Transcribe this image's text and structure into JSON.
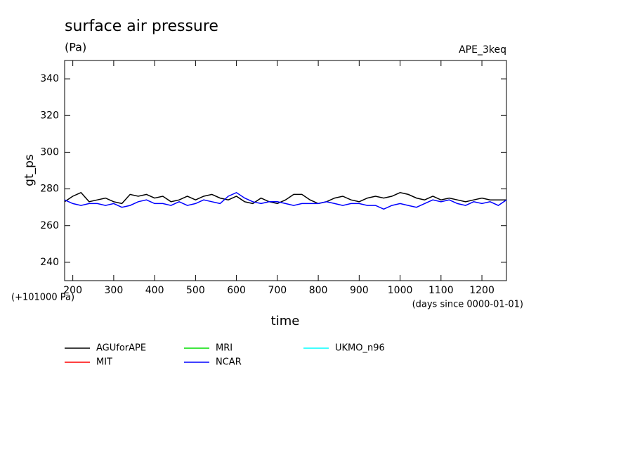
{
  "chart_data": {
    "type": "line",
    "title": "surface air pressure",
    "units": "(Pa)",
    "experiment": "APE_3keq",
    "ylabel": "gt_ps",
    "xlabel": "time",
    "y_offset_note": "(+101000 Pa)",
    "x_units_note": "(days since 0000-01-01)",
    "xlim": [
      180,
      1260
    ],
    "ylim": [
      230,
      350
    ],
    "xticks": [
      200,
      300,
      400,
      500,
      600,
      700,
      800,
      900,
      1000,
      1100,
      1200
    ],
    "yticks": [
      240,
      260,
      280,
      300,
      320,
      340
    ],
    "x": [
      180,
      200,
      220,
      240,
      260,
      280,
      300,
      320,
      340,
      360,
      380,
      400,
      420,
      440,
      460,
      480,
      500,
      520,
      540,
      560,
      580,
      600,
      620,
      640,
      660,
      680,
      700,
      720,
      740,
      760,
      780,
      800,
      820,
      840,
      860,
      880,
      900,
      920,
      940,
      960,
      980,
      1000,
      1020,
      1040,
      1060,
      1080,
      1100,
      1120,
      1140,
      1160,
      1180,
      1200,
      1220,
      1240,
      1260
    ],
    "series": [
      {
        "name": "AGUforAPE",
        "color": "#000000",
        "values": [
          273,
          276,
          278,
          273,
          274,
          275,
          273,
          272,
          277,
          276,
          277,
          275,
          276,
          273,
          274,
          276,
          274,
          276,
          277,
          275,
          274,
          276,
          273,
          272,
          275,
          273,
          272,
          274,
          277,
          277,
          274,
          272,
          273,
          275,
          276,
          274,
          273,
          275,
          276,
          275,
          276,
          278,
          277,
          275,
          274,
          276,
          274,
          275,
          274,
          273,
          274,
          275,
          274,
          274,
          274
        ]
      },
      {
        "name": "MIT",
        "color": "#ff0000",
        "values": [
          null,
          null,
          null,
          null,
          null,
          null,
          null,
          null,
          null,
          null,
          null,
          null,
          null,
          null,
          null,
          null,
          null,
          null,
          null,
          null,
          null,
          null,
          null,
          null,
          null,
          null,
          null,
          null,
          null,
          null,
          null,
          null,
          null,
          null,
          null,
          null,
          null,
          null,
          null,
          null,
          null,
          null,
          null,
          null,
          null,
          null,
          null,
          null,
          null,
          null,
          null,
          null,
          null,
          null,
          null
        ]
      },
      {
        "name": "MRI",
        "color": "#00dd00",
        "values": [
          null,
          null,
          null,
          null,
          null,
          null,
          null,
          null,
          null,
          null,
          null,
          null,
          null,
          null,
          null,
          null,
          null,
          null,
          null,
          null,
          null,
          null,
          null,
          null,
          null,
          null,
          null,
          null,
          null,
          null,
          null,
          null,
          null,
          null,
          null,
          null,
          null,
          null,
          null,
          null,
          null,
          null,
          null,
          null,
          null,
          null,
          null,
          null,
          null,
          null,
          null,
          null,
          null,
          null,
          null
        ]
      },
      {
        "name": "NCAR",
        "color": "#0000ff",
        "values": [
          274,
          272,
          271,
          272,
          272,
          271,
          272,
          270,
          271,
          273,
          274,
          272,
          272,
          271,
          273,
          271,
          272,
          274,
          273,
          272,
          276,
          278,
          275,
          273,
          272,
          273,
          273,
          272,
          271,
          272,
          272,
          272,
          273,
          272,
          271,
          272,
          272,
          271,
          271,
          269,
          271,
          272,
          271,
          270,
          272,
          274,
          273,
          274,
          272,
          271,
          273,
          272,
          273,
          271,
          274
        ]
      },
      {
        "name": "UKMO_n96",
        "color": "#00ffff",
        "values": [
          null,
          null,
          null,
          null,
          null,
          null,
          null,
          null,
          null,
          null,
          null,
          null,
          null,
          null,
          null,
          null,
          null,
          null,
          null,
          null,
          null,
          null,
          null,
          null,
          null,
          null,
          null,
          null,
          null,
          null,
          null,
          null,
          null,
          null,
          null,
          null,
          null,
          null,
          null,
          null,
          null,
          null,
          null,
          null,
          null,
          null,
          null,
          null,
          null,
          null,
          null,
          null,
          null,
          null,
          null
        ]
      }
    ]
  }
}
